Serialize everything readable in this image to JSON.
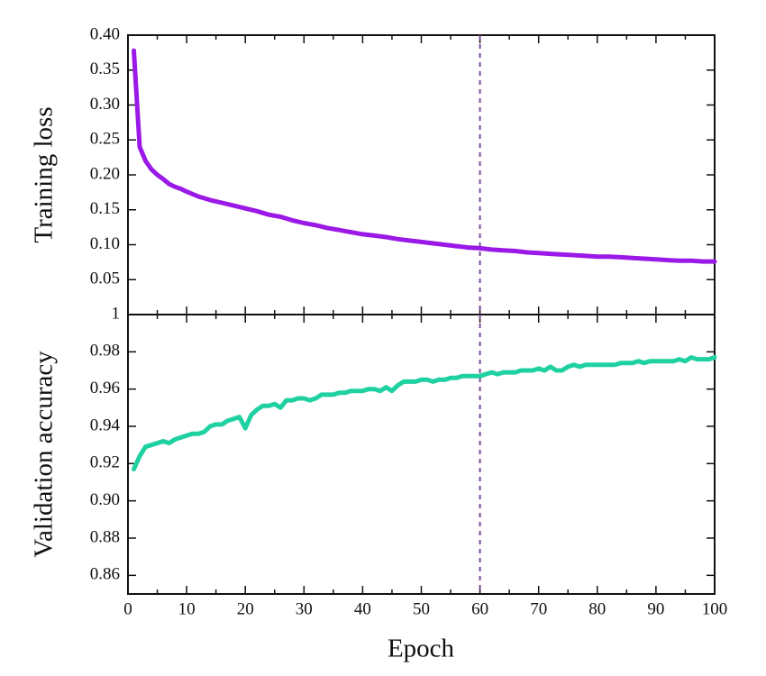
{
  "chart_data": [
    {
      "type": "line",
      "title": "",
      "ylabel": "Training loss",
      "xlabel": "",
      "xlim": [
        0,
        100
      ],
      "ylim": [
        0,
        0.4
      ],
      "yticks": [
        0.05,
        0.1,
        0.15,
        0.2,
        0.25,
        0.3,
        0.35,
        0.4
      ],
      "ytick_labels": [
        "0.05",
        "0.10",
        "0.15",
        "0.20",
        "0.25",
        "0.30",
        "0.35",
        "0.40"
      ],
      "vline_x": 60,
      "vline_color": "#7a4a9a",
      "grid": false,
      "series": [
        {
          "color": "#9b19e6",
          "x": [
            1,
            2,
            3,
            4,
            5,
            6,
            7,
            8,
            9,
            10,
            12,
            14,
            16,
            18,
            20,
            22,
            24,
            26,
            28,
            30,
            32,
            34,
            36,
            38,
            40,
            42,
            44,
            46,
            48,
            50,
            52,
            54,
            56,
            58,
            60,
            62,
            64,
            66,
            68,
            70,
            72,
            74,
            76,
            78,
            80,
            82,
            84,
            86,
            88,
            90,
            92,
            94,
            96,
            98,
            100
          ],
          "values": [
            0.378,
            0.24,
            0.22,
            0.208,
            0.2,
            0.194,
            0.187,
            0.183,
            0.18,
            0.176,
            0.169,
            0.164,
            0.16,
            0.156,
            0.152,
            0.148,
            0.143,
            0.14,
            0.135,
            0.131,
            0.128,
            0.124,
            0.121,
            0.118,
            0.115,
            0.113,
            0.111,
            0.108,
            0.106,
            0.104,
            0.102,
            0.1,
            0.098,
            0.096,
            0.095,
            0.093,
            0.092,
            0.091,
            0.089,
            0.088,
            0.087,
            0.086,
            0.085,
            0.084,
            0.083,
            0.083,
            0.082,
            0.081,
            0.08,
            0.079,
            0.078,
            0.077,
            0.077,
            0.076,
            0.076
          ]
        }
      ]
    },
    {
      "type": "line",
      "title": "",
      "ylabel": "Validation accuracy",
      "xlabel": "Epoch",
      "xlim": [
        0,
        100
      ],
      "ylim": [
        0.85,
        1.0
      ],
      "xticks": [
        0,
        10,
        20,
        30,
        40,
        50,
        60,
        70,
        80,
        90,
        100
      ],
      "xtick_labels": [
        "0",
        "10",
        "20",
        "30",
        "40",
        "50",
        "60",
        "70",
        "80",
        "90",
        "100"
      ],
      "yticks": [
        0.86,
        0.88,
        0.9,
        0.92,
        0.94,
        0.96,
        0.98,
        1.0
      ],
      "ytick_labels": [
        "0.86",
        "0.88",
        "0.90",
        "0.92",
        "0.94",
        "0.96",
        "0.98",
        "1"
      ],
      "vline_x": 60,
      "vline_color": "#7a4a9a",
      "grid": false,
      "series": [
        {
          "color": "#1fd1a0",
          "x": [
            1,
            2,
            3,
            4,
            5,
            6,
            7,
            8,
            9,
            10,
            11,
            12,
            13,
            14,
            15,
            16,
            17,
            18,
            19,
            20,
            21,
            22,
            23,
            24,
            25,
            26,
            27,
            28,
            29,
            30,
            31,
            32,
            33,
            34,
            35,
            36,
            37,
            38,
            39,
            40,
            41,
            42,
            43,
            44,
            45,
            46,
            47,
            48,
            49,
            50,
            51,
            52,
            53,
            54,
            55,
            56,
            57,
            58,
            59,
            60,
            61,
            62,
            63,
            64,
            65,
            66,
            67,
            68,
            69,
            70,
            71,
            72,
            73,
            74,
            75,
            76,
            77,
            78,
            79,
            80,
            81,
            82,
            83,
            84,
            85,
            86,
            87,
            88,
            89,
            90,
            91,
            92,
            93,
            94,
            95,
            96,
            97,
            98,
            99,
            100
          ],
          "values": [
            0.917,
            0.924,
            0.929,
            0.93,
            0.931,
            0.932,
            0.931,
            0.933,
            0.934,
            0.935,
            0.936,
            0.936,
            0.937,
            0.94,
            0.941,
            0.941,
            0.943,
            0.944,
            0.945,
            0.939,
            0.946,
            0.949,
            0.951,
            0.951,
            0.952,
            0.95,
            0.954,
            0.954,
            0.955,
            0.955,
            0.954,
            0.955,
            0.957,
            0.957,
            0.957,
            0.958,
            0.958,
            0.959,
            0.959,
            0.959,
            0.96,
            0.96,
            0.959,
            0.961,
            0.959,
            0.962,
            0.964,
            0.964,
            0.964,
            0.965,
            0.965,
            0.964,
            0.965,
            0.965,
            0.966,
            0.966,
            0.967,
            0.967,
            0.967,
            0.967,
            0.968,
            0.969,
            0.968,
            0.969,
            0.969,
            0.969,
            0.97,
            0.97,
            0.97,
            0.971,
            0.97,
            0.972,
            0.97,
            0.97,
            0.972,
            0.973,
            0.972,
            0.973,
            0.973,
            0.973,
            0.973,
            0.973,
            0.973,
            0.974,
            0.974,
            0.974,
            0.975,
            0.974,
            0.975,
            0.975,
            0.975,
            0.975,
            0.975,
            0.976,
            0.975,
            0.977,
            0.976,
            0.976,
            0.976,
            0.977
          ]
        }
      ]
    }
  ]
}
